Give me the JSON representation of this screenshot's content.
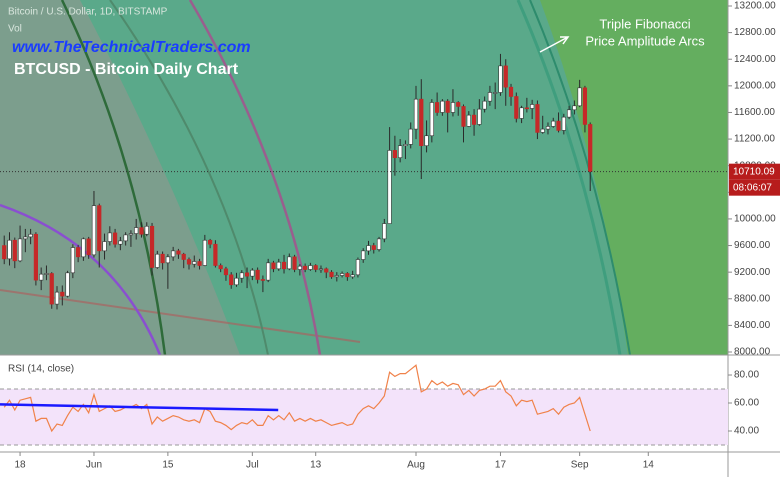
{
  "chart_data": [
    {
      "type": "candlestick",
      "title": "BTCUSD - Bitcoin Daily Chart",
      "subtitle": "Bitcoin / U.S. Dollar, 1D, BITSTAMP",
      "volume_label": "Vol",
      "watermark": "www.TheTechnicalTraders.com",
      "annotation": [
        "Triple Fibonacci",
        "Price Amplitude Arcs"
      ],
      "last_price": 10710.09,
      "countdown": "08:06:07",
      "up_color": "#ffffff",
      "down_color": "#c62828",
      "last_price_color": "#b71c1c",
      "xlim": [
        -3.8,
        134.1
      ],
      "xticks": [
        {
          "value": 0,
          "label": "18"
        },
        {
          "value": 14,
          "label": "Jun"
        },
        {
          "value": 28,
          "label": "15"
        },
        {
          "value": 44,
          "label": "Jul"
        },
        {
          "value": 56,
          "label": "13"
        },
        {
          "value": 75,
          "label": "Aug"
        },
        {
          "value": 91,
          "label": "17"
        },
        {
          "value": 106,
          "label": "Sep"
        },
        {
          "value": 119,
          "label": "14"
        }
      ],
      "ylim": [
        7955,
        13290
      ],
      "yticks": [
        {
          "value": 8000,
          "label": "8000.00"
        },
        {
          "value": 8400,
          "label": "8400.00"
        },
        {
          "value": 8800,
          "label": "8800.00"
        },
        {
          "value": 9200,
          "label": "9200.00"
        },
        {
          "value": 9600,
          "label": "9600.00"
        },
        {
          "value": 10000,
          "label": "10000.00"
        },
        {
          "value": 10400,
          "label": "10400.00"
        },
        {
          "value": 10800,
          "label": "10800.00"
        },
        {
          "value": 11200,
          "label": "11200.00"
        },
        {
          "value": 11600,
          "label": "11600.00"
        },
        {
          "value": 12000,
          "label": "12000.00"
        },
        {
          "value": 12400,
          "label": "12400.00"
        },
        {
          "value": 12800,
          "label": "12800.00"
        },
        {
          "value": 13200,
          "label": "13200.00"
        }
      ],
      "x": [
        -3,
        -2,
        -1,
        0,
        1,
        2,
        3,
        4,
        5,
        6,
        7,
        8,
        9,
        10,
        11,
        12,
        13,
        14,
        15,
        16,
        17,
        18,
        19,
        20,
        21,
        22,
        23,
        24,
        25,
        26,
        27,
        28,
        29,
        30,
        31,
        32,
        33,
        34,
        35,
        36,
        37,
        38,
        39,
        40,
        41,
        42,
        43,
        44,
        45,
        46,
        47,
        48,
        49,
        50,
        51,
        52,
        53,
        54,
        55,
        56,
        57,
        58,
        59,
        60,
        61,
        62,
        63,
        64,
        65,
        66,
        67,
        68,
        69,
        70,
        71,
        72,
        73,
        74,
        75,
        76,
        77,
        78,
        79,
        80,
        81,
        82,
        83,
        84,
        85,
        86,
        87,
        88,
        89,
        90,
        91,
        92,
        93,
        94,
        95,
        96,
        97,
        98,
        99,
        100,
        101,
        102,
        103,
        104,
        105,
        106,
        107,
        108
      ],
      "open": [
        9600,
        9400,
        9680,
        9370,
        9700,
        9730,
        9770,
        9080,
        9170,
        9180,
        8720,
        8900,
        8840,
        9190,
        9570,
        9430,
        9700,
        9460,
        10200,
        9520,
        9660,
        9790,
        9620,
        9670,
        9760,
        9780,
        9870,
        9770,
        9890,
        9270,
        9470,
        9340,
        9430,
        9520,
        9470,
        9390,
        9320,
        9360,
        9300,
        9680,
        9620,
        9300,
        9250,
        9160,
        9010,
        9110,
        9190,
        9140,
        9230,
        9090,
        9080,
        9340,
        9250,
        9350,
        9250,
        9430,
        9240,
        9290,
        9240,
        9300,
        9240,
        9250,
        9200,
        9130,
        9150,
        9180,
        9130,
        9160,
        9390,
        9520,
        9600,
        9540,
        9700,
        9930,
        11030,
        10920,
        11100,
        11120,
        11350,
        11800,
        11100,
        11250,
        11750,
        11600,
        11770,
        11600,
        11750,
        11690,
        11390,
        11560,
        11420,
        11650,
        11770,
        11900,
        11900,
        12300,
        11980,
        11840,
        11510,
        11670,
        11660,
        11720,
        11300,
        11350,
        11390,
        11470,
        11330,
        11530,
        11640,
        11700,
        11970,
        11420
      ],
      "high": [
        9750,
        9800,
        9720,
        9900,
        9850,
        9850,
        9800,
        9270,
        9300,
        9200,
        8990,
        9000,
        9220,
        9620,
        9610,
        9720,
        9730,
        10420,
        10230,
        9780,
        9890,
        9850,
        9730,
        9800,
        9830,
        10000,
        9950,
        9950,
        9940,
        9520,
        9510,
        9470,
        9580,
        9550,
        9490,
        9420,
        9450,
        9400,
        9760,
        9700,
        9680,
        9330,
        9280,
        9200,
        9190,
        9230,
        9270,
        9260,
        9270,
        9150,
        9400,
        9370,
        9400,
        9460,
        9480,
        9460,
        9320,
        9330,
        9340,
        9320,
        9300,
        9270,
        9230,
        9200,
        9210,
        9200,
        9220,
        9420,
        9560,
        9670,
        9640,
        9730,
        10000,
        11380,
        11250,
        11200,
        11180,
        11450,
        12000,
        12100,
        11480,
        11800,
        11900,
        11800,
        11800,
        11950,
        11770,
        11720,
        11620,
        11650,
        11800,
        11840,
        12000,
        12050,
        12480,
        12400,
        12030,
        11900,
        11700,
        11820,
        11790,
        11780,
        11550,
        11450,
        11520,
        11600,
        11580,
        11700,
        11780,
        12090,
        12000,
        11450
      ],
      "low": [
        9320,
        9300,
        9260,
        9350,
        9500,
        9620,
        9000,
        8930,
        9080,
        8650,
        8640,
        8700,
        8820,
        9110,
        9350,
        9370,
        9400,
        9420,
        9270,
        9390,
        9600,
        9570,
        9530,
        9600,
        9580,
        9690,
        9720,
        9740,
        9150,
        9250,
        9240,
        8950,
        9370,
        9400,
        9260,
        9240,
        9270,
        9240,
        9290,
        9560,
        9270,
        9200,
        9070,
        8950,
        8980,
        9040,
        8960,
        9080,
        9030,
        8900,
        9050,
        9200,
        9220,
        9180,
        9230,
        9200,
        9150,
        9200,
        9220,
        9200,
        9190,
        9110,
        9100,
        9060,
        9120,
        9070,
        9100,
        9120,
        9340,
        9460,
        9480,
        9510,
        9650,
        9930,
        10650,
        10850,
        10900,
        11060,
        11200,
        10600,
        11000,
        11150,
        11550,
        11550,
        11300,
        11540,
        11550,
        11150,
        11380,
        11250,
        11400,
        11600,
        11700,
        11650,
        11850,
        11700,
        11700,
        11450,
        11440,
        11600,
        11500,
        11200,
        11280,
        11270,
        11370,
        11300,
        11270,
        11500,
        11570,
        11680,
        11300,
        10420
      ],
      "close": [
        9400,
        9680,
        9370,
        9700,
        9730,
        9770,
        9080,
        9170,
        9180,
        8720,
        8900,
        8840,
        9190,
        9570,
        9430,
        9700,
        9460,
        10200,
        9520,
        9660,
        9790,
        9620,
        9670,
        9760,
        9780,
        9870,
        9770,
        9890,
        9270,
        9470,
        9340,
        9430,
        9520,
        9470,
        9390,
        9320,
        9360,
        9300,
        9680,
        9620,
        9300,
        9250,
        9160,
        9010,
        9110,
        9190,
        9140,
        9230,
        9090,
        9080,
        9340,
        9250,
        9350,
        9250,
        9430,
        9240,
        9290,
        9240,
        9300,
        9240,
        9250,
        9200,
        9130,
        9150,
        9180,
        9130,
        9160,
        9390,
        9520,
        9600,
        9540,
        9700,
        9930,
        11030,
        10920,
        11100,
        11120,
        11350,
        11800,
        11100,
        11250,
        11750,
        11600,
        11770,
        11600,
        11750,
        11690,
        11390,
        11560,
        11420,
        11650,
        11770,
        11900,
        11900,
        12300,
        11980,
        11840,
        11510,
        11670,
        11660,
        11720,
        11300,
        11350,
        11390,
        11470,
        11330,
        11530,
        11640,
        11700,
        11970,
        11420,
        10710
      ]
    },
    {
      "type": "line",
      "title": "RSI (14, close)",
      "color": "#f0824a",
      "band_color": "#f3e3fa",
      "bands": [
        70,
        30
      ],
      "ylim": [
        25,
        94.3
      ],
      "yticks": [
        {
          "value": 40,
          "label": "40.00"
        },
        {
          "value": 60,
          "label": "60.00"
        },
        {
          "value": 80,
          "label": "80.00"
        }
      ],
      "values": [
        57,
        62,
        55,
        62,
        63,
        64,
        47,
        49,
        49,
        40,
        45,
        44,
        51,
        57,
        54,
        59,
        53,
        66,
        54,
        56,
        58,
        54,
        55,
        57,
        57,
        59,
        56,
        59,
        45,
        50,
        47,
        49,
        51,
        50,
        48,
        47,
        48,
        46,
        56,
        54,
        47,
        46,
        44,
        41,
        44,
        46,
        45,
        48,
        44,
        44,
        51,
        48,
        51,
        48,
        53,
        47,
        49,
        47,
        49,
        47,
        48,
        46,
        44,
        45,
        46,
        44,
        45,
        52,
        56,
        58,
        56,
        60,
        65,
        82,
        79,
        81,
        81,
        84,
        87,
        68,
        70,
        76,
        73,
        75,
        72,
        74,
        73,
        66,
        69,
        65,
        69,
        70,
        72,
        72,
        76,
        68,
        65,
        58,
        62,
        61,
        62,
        52,
        53,
        54,
        56,
        52,
        57,
        59,
        60,
        64,
        52,
        40
      ],
      "trendline": {
        "color": "#1a1aff",
        "x": [
          -3.8,
          48.9
        ],
        "values": [
          59,
          55
        ]
      }
    }
  ]
}
